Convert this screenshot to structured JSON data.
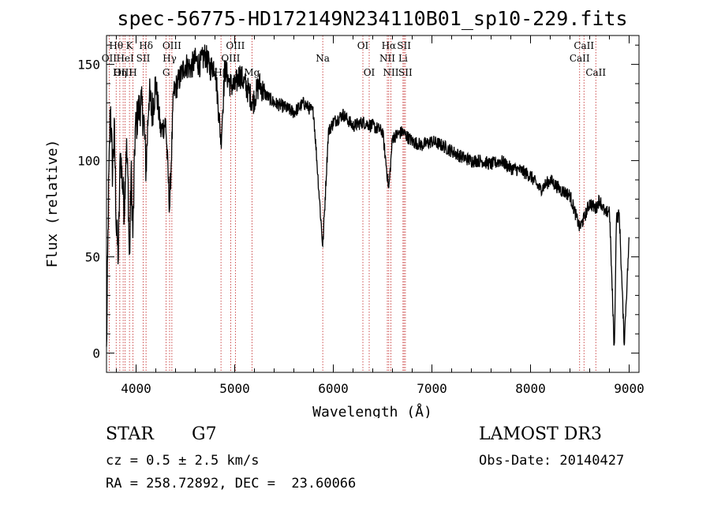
{
  "chart_data": {
    "type": "line",
    "title": "spec-56775-HD172149N234110B01_sp10-229.fits",
    "xlabel": "Wavelength (Å)",
    "ylabel": "Flux (relative)",
    "xlim": [
      3700,
      9100
    ],
    "ylim": [
      -10,
      165
    ],
    "x_ticks": [
      4000,
      5000,
      6000,
      7000,
      8000,
      9000
    ],
    "x_tick_labels": [
      "4000",
      "5000",
      "6000",
      "7000",
      "8000",
      "9000"
    ],
    "y_ticks": [
      0,
      50,
      100,
      150
    ],
    "y_tick_labels": [
      "0",
      "50",
      "100",
      "150"
    ],
    "grid": false,
    "series": [
      {
        "name": "flux",
        "x": [
          3700,
          3720,
          3740,
          3760,
          3780,
          3800,
          3820,
          3840,
          3860,
          3880,
          3900,
          3920,
          3933,
          3950,
          3968,
          3990,
          4020,
          4050,
          4080,
          4101,
          4130,
          4160,
          4200,
          4250,
          4300,
          4340,
          4380,
          4420,
          4460,
          4500,
          4550,
          4600,
          4650,
          4700,
          4750,
          4800,
          4861,
          4900,
          4950,
          5000,
          5050,
          5100,
          5150,
          5183,
          5250,
          5300,
          5400,
          5500,
          5600,
          5700,
          5800,
          5893,
          5950,
          6000,
          6100,
          6200,
          6300,
          6400,
          6500,
          6563,
          6600,
          6700,
          6800,
          6900,
          7000,
          7100,
          7200,
          7300,
          7400,
          7500,
          7600,
          7700,
          7800,
          7900,
          8000,
          8100,
          8200,
          8300,
          8400,
          8498,
          8542,
          8600,
          8662,
          8700,
          8760,
          8800,
          8850,
          8870,
          8900,
          8950,
          9000
        ],
        "y": [
          0,
          80,
          130,
          95,
          115,
          65,
          50,
          105,
          90,
          75,
          110,
          85,
          45,
          95,
          60,
          115,
          125,
          130,
          120,
          95,
          135,
          125,
          140,
          115,
          120,
          75,
          135,
          140,
          145,
          150,
          148,
          152,
          150,
          155,
          148,
          150,
          110,
          148,
          140,
          138,
          145,
          140,
          135,
          130,
          140,
          135,
          130,
          128,
          125,
          130,
          125,
          55,
          115,
          120,
          124,
          118,
          120,
          118,
          115,
          85,
          112,
          115,
          110,
          108,
          110,
          108,
          105,
          102,
          100,
          100,
          98,
          100,
          96,
          95,
          92,
          85,
          90,
          85,
          82,
          65,
          70,
          78,
          75,
          80,
          72,
          75,
          0,
          70,
          72,
          5,
          60
        ]
      }
    ],
    "lines": [
      {
        "label": "Hθ",
        "wave": 3798,
        "row": 1
      },
      {
        "label": "OII",
        "wave": 3727,
        "row": 2
      },
      {
        "label": "OIII",
        "wave": 3869,
        "row": 3
      },
      {
        "label": "Hη",
        "wave": 3835,
        "row": 3
      },
      {
        "label": "HeI",
        "wave": 3889,
        "row": 2
      },
      {
        "label": "K",
        "wave": 3933,
        "row": 1
      },
      {
        "label": "H",
        "wave": 3968,
        "row": 3
      },
      {
        "label": "Hδ",
        "wave": 4101,
        "row": 1
      },
      {
        "label": "SII",
        "wave": 4072,
        "row": 2
      },
      {
        "label": "OIII",
        "wave": 4363,
        "row": 1
      },
      {
        "label": "Hγ",
        "wave": 4340,
        "row": 2
      },
      {
        "label": "G",
        "wave": 4305,
        "row": 3
      },
      {
        "label": "OIII",
        "wave": 5007,
        "row": 1
      },
      {
        "label": "OIII",
        "wave": 4959,
        "row": 2
      },
      {
        "label": "Hβ",
        "wave": 4861,
        "row": 3
      },
      {
        "label": "Mg",
        "wave": 5175,
        "row": 3
      },
      {
        "label": "Na",
        "wave": 5893,
        "row": 2
      },
      {
        "label": "OI",
        "wave": 6300,
        "row": 1
      },
      {
        "label": "OI",
        "wave": 6364,
        "row": 3
      },
      {
        "label": "Hα",
        "wave": 6563,
        "row": 1
      },
      {
        "label": "NII",
        "wave": 6548,
        "row": 2
      },
      {
        "label": "NII",
        "wave": 6584,
        "row": 3
      },
      {
        "label": "SII",
        "wave": 6717,
        "row": 1
      },
      {
        "label": "Li",
        "wave": 6707,
        "row": 2
      },
      {
        "label": "SII",
        "wave": 6731,
        "row": 3
      },
      {
        "label": "CaII",
        "wave": 8542,
        "row": 1
      },
      {
        "label": "CaII",
        "wave": 8498,
        "row": 2
      },
      {
        "label": "CaII",
        "wave": 8662,
        "row": 3
      }
    ]
  },
  "info": {
    "object_type": "STAR",
    "subclass": "G7",
    "redshift": "cz = 0.5 ± 2.5 km/s",
    "coords": "RA = 258.72892, DEC =  23.60066",
    "survey": "LAMOST DR3",
    "obs_date": "Obs-Date: 20140427"
  },
  "colors": {
    "line_marker": "#c02020",
    "spectrum": "#000000"
  }
}
